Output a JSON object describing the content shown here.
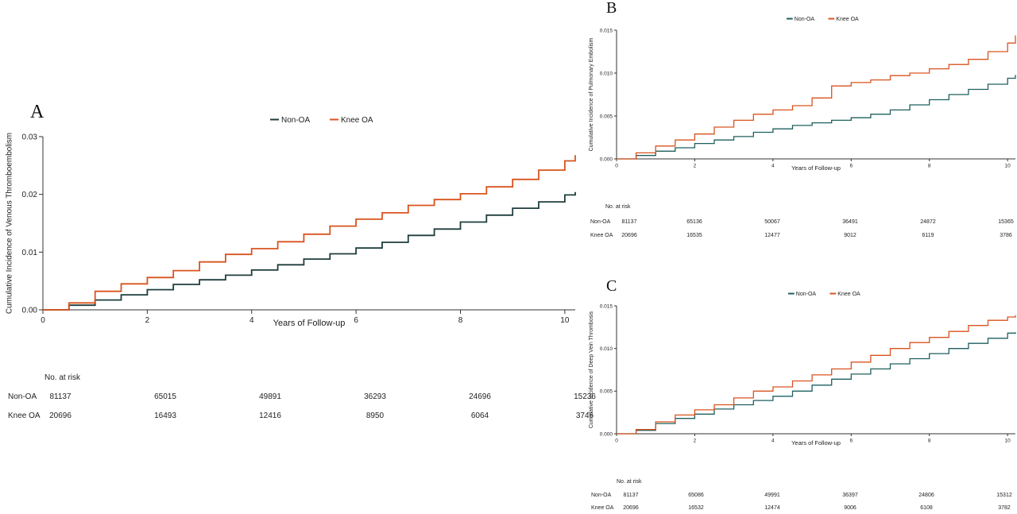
{
  "chart_data": [
    {
      "panel": "A",
      "type": "line",
      "step": true,
      "xlabel": "Years of Follow-up",
      "ylabel": "Cumulative Incidence of Venous Thromboembolism",
      "xlim": [
        0,
        10.2
      ],
      "ylim": [
        0,
        0.03
      ],
      "xticks": [
        "0",
        "2",
        "4",
        "6",
        "8",
        "10"
      ],
      "yticks": [
        "0.00",
        "0.01",
        "0.02",
        "0.03"
      ],
      "grid": false,
      "legend_position": "top",
      "series": [
        {
          "name": "Non-OA",
          "color": "#1f3d3d",
          "x": [
            0,
            0.5,
            1,
            1.5,
            2,
            2.5,
            3,
            3.5,
            4,
            4.5,
            5,
            5.5,
            6,
            6.5,
            7,
            7.5,
            8,
            8.5,
            9,
            9.5,
            10,
            10.2
          ],
          "y": [
            0,
            0.0008,
            0.0017,
            0.0026,
            0.0035,
            0.0044,
            0.0052,
            0.006,
            0.0069,
            0.0078,
            0.0088,
            0.0097,
            0.0107,
            0.0117,
            0.0129,
            0.014,
            0.0152,
            0.0164,
            0.0176,
            0.0187,
            0.0199,
            0.0204
          ]
        },
        {
          "name": "Knee OA",
          "color": "#d9531e",
          "x": [
            0,
            0.5,
            1,
            1.5,
            2,
            2.5,
            3,
            3.5,
            4,
            4.5,
            5,
            5.5,
            6,
            6.5,
            7,
            7.5,
            8,
            8.5,
            9,
            9.5,
            10,
            10.2
          ],
          "y": [
            0,
            0.0012,
            0.0032,
            0.0045,
            0.0056,
            0.0068,
            0.0083,
            0.0096,
            0.0106,
            0.0118,
            0.0131,
            0.0145,
            0.0157,
            0.0168,
            0.0181,
            0.0191,
            0.0201,
            0.0213,
            0.0226,
            0.0242,
            0.0258,
            0.0268
          ]
        }
      ],
      "risk_table": {
        "title": "No. at risk",
        "rows": [
          {
            "label": "Non-OA",
            "values": [
              "81137",
              "65015",
              "49891",
              "36293",
              "24696",
              "15236"
            ]
          },
          {
            "label": "Knee OA",
            "values": [
              "20696",
              "16493",
              "12416",
              "8950",
              "6064",
              "3746"
            ]
          }
        ]
      }
    },
    {
      "panel": "B",
      "type": "line",
      "step": true,
      "xlabel": "Years of Follow-up",
      "ylabel": "Cumulative Incidence of Pulmonary Embolism",
      "xlim": [
        0,
        10.2
      ],
      "ylim": [
        0,
        0.015
      ],
      "xticks": [
        "0",
        "2",
        "4",
        "6",
        "8",
        "10"
      ],
      "yticks": [
        "0.000",
        "0.005",
        "0.010",
        "0.015"
      ],
      "grid": false,
      "legend_position": "top",
      "series": [
        {
          "name": "Non-OA",
          "color": "#1f5f5f",
          "x": [
            0,
            0.5,
            1,
            1.5,
            2,
            2.5,
            3,
            3.5,
            4,
            4.5,
            5,
            5.5,
            6,
            6.5,
            7,
            7.5,
            8,
            8.5,
            9,
            9.5,
            10,
            10.2
          ],
          "y": [
            0,
            0.0004,
            0.0009,
            0.0013,
            0.0018,
            0.0022,
            0.0026,
            0.0031,
            0.0035,
            0.0039,
            0.0042,
            0.0045,
            0.0048,
            0.0052,
            0.0057,
            0.0063,
            0.0069,
            0.0075,
            0.0081,
            0.0087,
            0.0094,
            0.0098
          ]
        },
        {
          "name": "Knee OA",
          "color": "#d9531e",
          "x": [
            0,
            0.5,
            1,
            1.5,
            2,
            2.5,
            3,
            3.5,
            4,
            4.5,
            5,
            5.5,
            6,
            6.5,
            7,
            7.5,
            8,
            8.5,
            9,
            9.5,
            10,
            10.2
          ],
          "y": [
            0,
            0.0007,
            0.0015,
            0.0022,
            0.0029,
            0.0037,
            0.0045,
            0.0052,
            0.0057,
            0.0062,
            0.0071,
            0.0085,
            0.0089,
            0.0092,
            0.0097,
            0.01,
            0.0105,
            0.011,
            0.0116,
            0.0125,
            0.0135,
            0.0144
          ]
        }
      ],
      "risk_table": {
        "title": "No. at risk",
        "rows": [
          {
            "label": "Non-OA",
            "values": [
              "81137",
              "65136",
              "50067",
              "36491",
              "24872",
              "15365"
            ]
          },
          {
            "label": "Knee OA",
            "values": [
              "20696",
              "16535",
              "12477",
              "9012",
              "6119",
              "3786"
            ]
          }
        ]
      }
    },
    {
      "panel": "C",
      "type": "line",
      "step": true,
      "xlabel": "Years of Follow-up",
      "ylabel": "Cumulative Incidence of Deep Vein Thrombosis",
      "xlim": [
        0,
        10.2
      ],
      "ylim": [
        0,
        0.015
      ],
      "xticks": [
        "0",
        "2",
        "4",
        "6",
        "8",
        "10"
      ],
      "yticks": [
        "0.000",
        "0.005",
        "0.010",
        "0.015"
      ],
      "grid": false,
      "legend_position": "top",
      "series": [
        {
          "name": "Non-OA",
          "color": "#1f5f5f",
          "x": [
            0,
            0.5,
            1,
            1.5,
            2,
            2.5,
            3,
            3.5,
            4,
            4.5,
            5,
            5.5,
            6,
            6.5,
            7,
            7.5,
            8,
            8.5,
            9,
            9.5,
            10,
            10.2
          ],
          "y": [
            0,
            0.0004,
            0.0012,
            0.0018,
            0.0023,
            0.0029,
            0.0034,
            0.0039,
            0.0044,
            0.005,
            0.0057,
            0.0064,
            0.007,
            0.0076,
            0.0082,
            0.0088,
            0.0094,
            0.01,
            0.0106,
            0.0112,
            0.0118,
            0.0119
          ]
        },
        {
          "name": "Knee OA",
          "color": "#d9531e",
          "x": [
            0,
            0.5,
            1,
            1.5,
            2,
            2.5,
            3,
            3.5,
            4,
            4.5,
            5,
            5.5,
            6,
            6.5,
            7,
            7.5,
            8,
            8.5,
            9,
            9.5,
            10,
            10.2
          ],
          "y": [
            0,
            0.0005,
            0.0014,
            0.0022,
            0.0028,
            0.0034,
            0.0042,
            0.005,
            0.0055,
            0.0062,
            0.0069,
            0.0076,
            0.0084,
            0.0092,
            0.01,
            0.0107,
            0.0113,
            0.012,
            0.0127,
            0.0133,
            0.0137,
            0.0139
          ]
        }
      ],
      "risk_table": {
        "title": "No. at risk",
        "rows": [
          {
            "label": "Non-OA",
            "values": [
              "81137",
              "65086",
              "49991",
              "36397",
              "24806",
              "15312"
            ]
          },
          {
            "label": "Knee OA",
            "values": [
              "20696",
              "16532",
              "12474",
              "9006",
              "6108",
              "3782"
            ]
          }
        ]
      }
    }
  ]
}
